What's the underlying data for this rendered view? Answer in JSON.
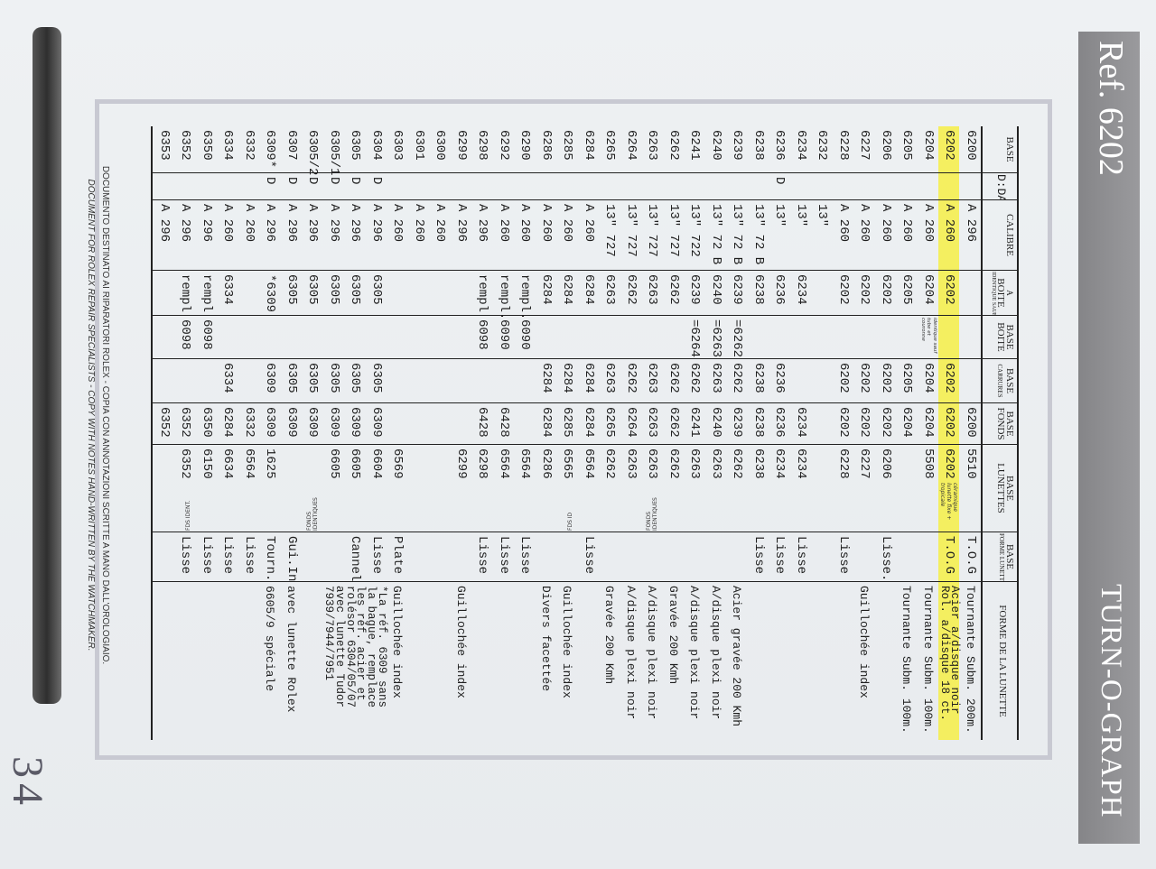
{
  "banner": {
    "ref": "Ref. 6202",
    "title": "TURN-O-GRAPH",
    "color": "#8d8d90"
  },
  "footer": {
    "line1": "Documento destinato ai riparatori Rolex - copia con annotazioni scritte a mano dall'orologiaio.",
    "line2": "Document for Rolex repair specialists - copy with notes hand-written by the watchmaker."
  },
  "page_number": "34",
  "highlight_color": "#f6ee46",
  "table": {
    "headers": {
      "base": "BASE",
      "date": "D:DATE",
      "calibre": "CALIBRE",
      "boite_a": "A",
      "boite": "BOITE",
      "boite_sub": "IDENTIQUE SAUF LUNETTE",
      "base_boite_1": "BASE",
      "base_boite_2": "BOITE",
      "carrures_1": "BASE",
      "carrures_2": "CARRURES",
      "fonds_1": "BASE",
      "fonds_2": "FONDS",
      "lunettes_1": "BASE",
      "lunettes_2": "LUNETTES",
      "forme_base_1": "BASE",
      "forme_base_2": "FORME LUNETTE",
      "forme": "FORME DE LA LUNETTE"
    },
    "rows": [
      {
        "base": "6200",
        "calibre": "A 296",
        "fonds": "6200",
        "lunettes": "5510",
        "forme_base": "T.O.G",
        "forme": [
          "Tournante Subm. 200m."
        ]
      },
      {
        "base": "6202",
        "calibre": "A 260",
        "boite": "6202",
        "carrures": "6202",
        "fonds": "6202",
        "lunettes": "6202",
        "lunettes_note": "céramique lunette fixe + tropicale",
        "forme_base": "T.O.G",
        "forme": [
          "Acier a/disque noir",
          "Rol. a/disque 18 ct."
        ],
        "highlight": true
      },
      {
        "base": "6204",
        "calibre": "A 260",
        "boite": "6204",
        "base_boite_note": "identique sauf tube et couronne",
        "carrures": "6204",
        "fonds": "6204",
        "lunettes": "5508",
        "forme": [
          "Tournante Subm. 100m."
        ]
      },
      {
        "base": "6205",
        "calibre": "A 260",
        "boite": "6205",
        "carrures": "6205",
        "fonds": "6204",
        "forme": [
          "Tournante Subm. 100m."
        ]
      },
      {
        "base": "6206",
        "calibre": "A 260",
        "boite": "6202",
        "carrures": "6202",
        "fonds": "6202",
        "lunettes": "6206",
        "forme_base": "Lisse."
      },
      {
        "base": "6227",
        "calibre": "A 260",
        "boite": "6202",
        "carrures": "6202",
        "fonds": "6202",
        "lunettes": "6227",
        "forme": [
          "Guillochée index"
        ]
      },
      {
        "base": "6228",
        "calibre": "A 260",
        "boite": "6202",
        "carrures": "6202",
        "fonds": "6202",
        "lunettes": "6228",
        "forme_base": "Lisse"
      },
      {
        "base": "6232",
        "calibre": "13\""
      },
      {
        "base": "6234",
        "calibre": "13\"",
        "boite": "6234",
        "fonds": "6234",
        "lunettes": "6234",
        "forme_base": "Lisse"
      },
      {
        "base": "6236",
        "date": "D",
        "calibre": "13\"",
        "boite": "6236",
        "carrures": "6236",
        "fonds": "6236",
        "lunettes": "6234",
        "forme_base": "Lisse"
      },
      {
        "base": "6238",
        "calibre": "13\" 72 B",
        "boite": "6238",
        "carrures": "6238",
        "fonds": "6238",
        "lunettes": "6238",
        "forme_base": "Lisse"
      },
      {
        "base": "6239",
        "calibre": "13\" 72 B",
        "boite": "6239",
        "base_boite": "=6262",
        "carrures": "6262",
        "fonds": "6239",
        "lunettes": "6262",
        "forme": [
          "Acier gravée 200 Kmh"
        ]
      },
      {
        "base": "6240",
        "calibre": "13\" 72 B",
        "boite": "6240",
        "base_boite": "=6263",
        "carrures": "6263",
        "fonds": "6240",
        "lunettes": "6263",
        "forme": [
          "A/disque plexi noir"
        ]
      },
      {
        "base": "6241",
        "calibre": "13\" 722",
        "boite": "6239",
        "base_boite": "=6264",
        "carrures": "6262",
        "fonds": "6241",
        "lunettes": "6263",
        "forme": [
          "A/disque plexi noir"
        ]
      },
      {
        "base": "6262",
        "calibre": "13\" 727",
        "boite": "6262",
        "carrures": "6262",
        "fonds": "6262",
        "lunettes": "6262",
        "forme": [
          "Gravée 200 Kmh"
        ]
      },
      {
        "base": "6263",
        "calibre": "13\" 727",
        "boite": "6263",
        "carrures": "6263",
        "fonds": "6263",
        "lunettes": "6263",
        "fonds_note": "FONDS IDENTIQUES",
        "forme": [
          "A/disque plexi noir"
        ]
      },
      {
        "base": "6264",
        "calibre": "13\" 727",
        "boite": "6262",
        "carrures": "6262",
        "fonds": "6264",
        "lunettes": "6263",
        "forme": [
          "A/disque plexi noir"
        ]
      },
      {
        "base": "6265",
        "calibre": "13\" 727",
        "boite": "6263",
        "carrures": "6263",
        "fonds": "6265",
        "lunettes": "6262",
        "forme": [
          "Gravée 200 Kmh"
        ]
      },
      {
        "base": "6284",
        "calibre": "A 260",
        "boite": "6284",
        "carrures": "6284",
        "fonds": "6284",
        "lunettes": "6564",
        "forme_base": "Lisse"
      },
      {
        "base": "6285",
        "calibre": "A 260",
        "boite": "6284",
        "carrures": "6284",
        "fonds": "6285",
        "lunettes": "6565",
        "fonds_note": "FDS ID",
        "forme": [
          "Guillochée index"
        ]
      },
      {
        "base": "6286",
        "calibre": "A 260",
        "boite": "6284",
        "carrures": "6284",
        "fonds": "6284",
        "lunettes": "6286",
        "forme": [
          "Divers facettée"
        ]
      },
      {
        "base": "6290",
        "calibre": "A 260",
        "boite": "rempl.",
        "base_boite": "6090",
        "lunettes": "6564",
        "forme_base": "Lisse"
      },
      {
        "base": "6292",
        "calibre": "A 260",
        "boite": "rempl.",
        "base_boite": "6090",
        "fonds": "6428",
        "lunettes": "6564",
        "forme_base": "Lisse"
      },
      {
        "base": "6298",
        "calibre": "A 296",
        "boite": "rempl",
        "base_boite": "6098",
        "fonds": "6428",
        "lunettes": "6298",
        "forme_base": "Lisse"
      },
      {
        "base": "6299",
        "calibre": "A 296",
        "lunettes": "6299",
        "forme": [
          "Guillochée index"
        ]
      },
      {
        "base": "6300",
        "calibre": "A 260"
      },
      {
        "base": "6301",
        "calibre": "A 260"
      },
      {
        "base": "6303",
        "calibre": "A 260",
        "lunettes": "6569",
        "forme_base": "Plate",
        "forme": [
          "Guillochée index"
        ]
      },
      {
        "base": "6304",
        "date": "D",
        "calibre": "A 296",
        "boite": "6305",
        "carrures": "6305",
        "fonds": "6309",
        "lunettes": "6604",
        "forme_base": "Lisse",
        "forme": [
          "*La réf. 6309 sans",
          "la bague, remplace"
        ]
      },
      {
        "base": "6305",
        "date": "D",
        "calibre": "A 296",
        "boite": "6305",
        "carrures": "6305",
        "fonds": "6309",
        "lunettes": "6605",
        "forme_base": "Cannel",
        "forme": [
          "les réf. acier et",
          "rolésor 6304/05/07"
        ]
      },
      {
        "base": "6305/1",
        "date": "D",
        "calibre": "A 296",
        "boite": "6305",
        "carrures": "6305",
        "fonds": "6309",
        "lunettes": "6605",
        "forme": [
          "avec lunette Tudor",
          "7939/7944/7951"
        ]
      },
      {
        "base": "6305/2",
        "date": "D",
        "calibre": "A 296",
        "boite": "6305",
        "carrures": "6305",
        "fonds": "6309",
        "fonds_note": "FONDS IDENTIQUES"
      },
      {
        "base": "6307",
        "date": "D",
        "calibre": "A 296",
        "boite": "6305",
        "carrures": "6305",
        "fonds": "6309",
        "forme_base": "Gui.In",
        "forme": [
          "avec lunette Rolex"
        ]
      },
      {
        "base": "6309*",
        "date": "D",
        "calibre": "A 296",
        "boite": "*6309",
        "carrures": "6309",
        "fonds": "6309",
        "lunettes": "1625",
        "forme_base": "Tourn.",
        "forme": [
          "6605/9 spéciale"
        ]
      },
      {
        "base": "6332",
        "calibre": "A 260",
        "fonds": "6332",
        "lunettes": "6564",
        "forme_base": "Lisse"
      },
      {
        "base": "6334",
        "calibre": "A 260",
        "boite": "6334",
        "carrures": "6334",
        "fonds": "6284",
        "lunettes": "6634",
        "forme_base": "Lisse"
      },
      {
        "base": "6350",
        "calibre": "A 296",
        "boite": "rempl",
        "base_boite": "6098",
        "fonds": "6350",
        "lunettes": "6150",
        "forme_base": "Lisse"
      },
      {
        "base": "6352",
        "calibre": "A 296",
        "boite": "rempl",
        "base_boite": "6098",
        "fonds": "6352",
        "lunettes": "6352",
        "fonds_note": "FDS IDENT.",
        "forme_base": "Lisse"
      },
      {
        "base": "6353",
        "calibre": "A 296",
        "fonds": "6352"
      }
    ]
  }
}
